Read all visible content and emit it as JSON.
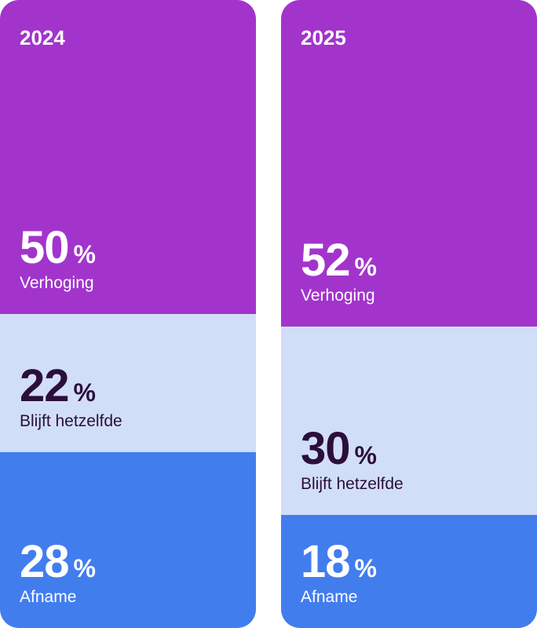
{
  "colors": {
    "increase": "#A234CC",
    "same": "#D1DEF8",
    "decrease": "#427DEE",
    "light_text": "#FFFFFF",
    "dark_text": "#2B0F3A"
  },
  "chart_data": {
    "type": "bar",
    "stacked": true,
    "categories": [
      "2024",
      "2025"
    ],
    "unit": "%",
    "series": [
      {
        "name": "Verhoging",
        "values": [
          50,
          52
        ]
      },
      {
        "name": "Blijft hetzelfde",
        "values": [
          22,
          30
        ]
      },
      {
        "name": "Afname",
        "values": [
          28,
          18
        ]
      }
    ]
  }
}
